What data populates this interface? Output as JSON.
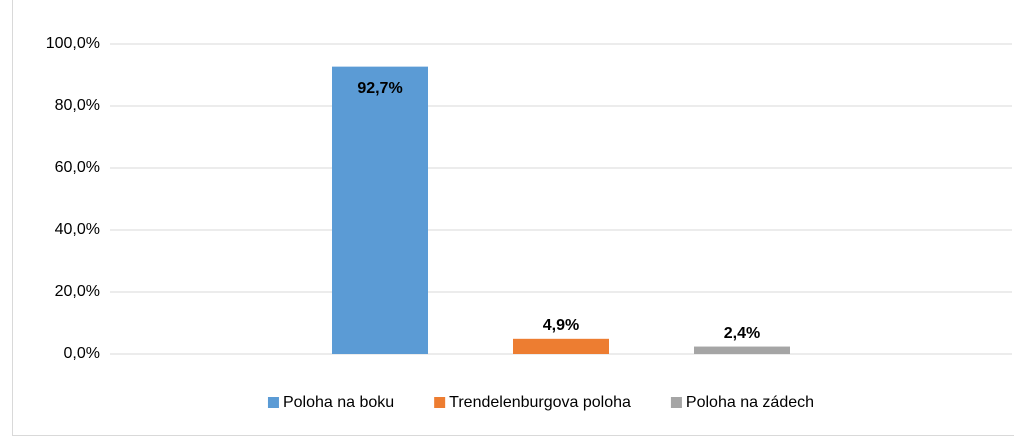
{
  "chart_data": {
    "type": "bar",
    "categories": [
      null
    ],
    "series": [
      {
        "name": "Poloha na boku",
        "color": "#5b9bd5",
        "values": [
          92.7
        ],
        "value_labels": [
          "92,7%"
        ]
      },
      {
        "name": "Trendelenburgova poloha",
        "color": "#ed7d31",
        "values": [
          4.9
        ],
        "value_labels": [
          "4,9%"
        ]
      },
      {
        "name": "Poloha na zádech",
        "color": "#a5a5a5",
        "values": [
          2.4
        ],
        "value_labels": [
          "2,4%"
        ]
      }
    ],
    "ylim": [
      0,
      100
    ],
    "yticks": [
      {
        "value": 0,
        "label": "0,0%"
      },
      {
        "value": 20,
        "label": "20,0%"
      },
      {
        "value": 40,
        "label": "40,0%"
      },
      {
        "value": 60,
        "label": "60,0%"
      },
      {
        "value": 80,
        "label": "80,0%"
      },
      {
        "value": 100,
        "label": "100,0%"
      }
    ],
    "grid": true,
    "legend": "bottom"
  }
}
